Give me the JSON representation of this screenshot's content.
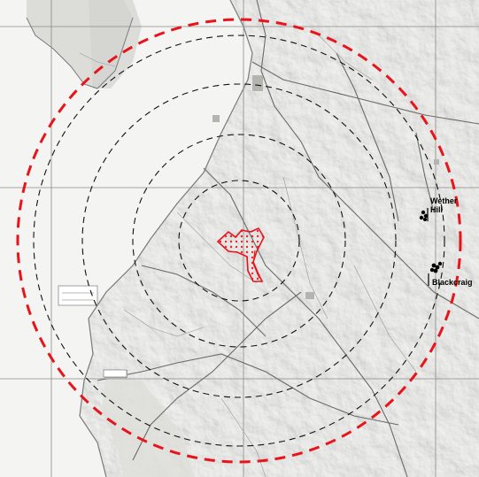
{
  "map": {
    "colors": {
      "study_radius": "#e8141b",
      "inner_radii": "#111111",
      "site_outline": "#e8141b",
      "grid": "#8a8a8a",
      "terrain_base": "#f6f6f4",
      "terrain_shade": "#d8d8d4",
      "roads": "#6a6a6a",
      "windfarm_marker": "#000000"
    },
    "windfarms": [
      {
        "name_line1": "Wether",
        "name_line2": "Hill",
        "marker_icon": "turbine-cluster-icon"
      },
      {
        "name_line1": "Blackcraig",
        "name_line2": "",
        "marker_icon": "turbine-cluster-icon"
      }
    ]
  }
}
